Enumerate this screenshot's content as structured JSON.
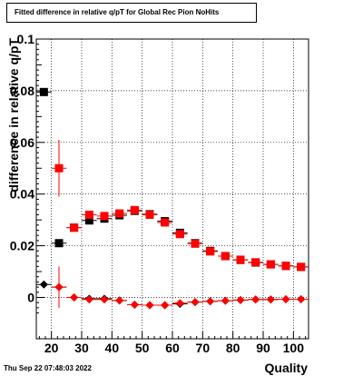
{
  "title": "Fitted difference in relative q/pT for Global Rec Pion NoHits",
  "timestamp": "Thu Sep 22 07:48:03 2022",
  "chart_data": {
    "type": "scatter",
    "title": "Fitted difference in relative q/pT for Global Rec Pion NoHits",
    "xlabel": "Quality",
    "ylabel": "difference in relative q/pT",
    "xlim": [
      15,
      105
    ],
    "ylim": [
      -0.016,
      0.1
    ],
    "xticks": [
      20,
      30,
      40,
      50,
      60,
      70,
      80,
      90,
      100
    ],
    "yticks": [
      0,
      0.02,
      0.04,
      0.06,
      0.08,
      0.1
    ],
    "ytick_labels": [
      "0",
      "0.02",
      "0.04",
      "0.06",
      "0.08",
      "0.1"
    ],
    "grid": true,
    "series": [
      {
        "marker": "square",
        "color": "#000000",
        "x": [
          17.5,
          22.5,
          27.5,
          32.5,
          37.5,
          42.5,
          47.5,
          52.5,
          57.5,
          62.5,
          67.5,
          72.5,
          77.5,
          82.5,
          87.5,
          92.5,
          97.5,
          102.5
        ],
        "y": [
          0.0795,
          0.021,
          0.027,
          0.0298,
          0.0305,
          0.0318,
          0.0335,
          0.0322,
          0.0295,
          0.025,
          0.021,
          0.018,
          0.016,
          0.0145,
          0.0135,
          0.0128,
          0.0122,
          0.0118
        ]
      },
      {
        "marker": "square",
        "color": "#ff0000",
        "x": [
          22.5,
          27.5,
          32.5,
          37.5,
          42.5,
          47.5,
          52.5,
          57.5,
          62.5,
          67.5,
          72.5,
          77.5,
          82.5,
          87.5,
          92.5,
          97.5,
          102.5
        ],
        "y": [
          0.05,
          0.027,
          0.032,
          0.0315,
          0.0325,
          0.0338,
          0.032,
          0.029,
          0.0245,
          0.0208,
          0.0178,
          0.016,
          0.0146,
          0.0136,
          0.0128,
          0.0122,
          0.0118
        ],
        "yerr": [
          0.011,
          0.001,
          0.001,
          0.001,
          0.001,
          0.001,
          0.001,
          0.001,
          0.001,
          0.0008,
          0.0008,
          0.0008,
          0.0008,
          0.0007,
          0.0007,
          0.0007,
          0.0007
        ]
      },
      {
        "marker": "diamond",
        "color": "#000000",
        "x": [
          17.5,
          22.5,
          27.5,
          32.5,
          37.5,
          42.5,
          47.5,
          52.5,
          57.5,
          62.5,
          67.5,
          72.5,
          77.5,
          82.5,
          87.5,
          92.5,
          97.5,
          102.5
        ],
        "y": [
          0.005,
          0.004,
          0.0,
          -0.0005,
          -0.0005,
          -0.0012,
          -0.0028,
          -0.003,
          -0.003,
          -0.0025,
          -0.0018,
          -0.0015,
          -0.0013,
          -0.001,
          -0.0008,
          -0.0008,
          -0.0007,
          -0.0007
        ]
      },
      {
        "marker": "diamond",
        "color": "#ff0000",
        "x": [
          22.5,
          27.5,
          32.5,
          37.5,
          42.5,
          47.5,
          52.5,
          57.5,
          62.5,
          67.5,
          72.5,
          77.5,
          82.5,
          87.5,
          92.5,
          97.5,
          102.5
        ],
        "y": [
          0.004,
          0.0,
          -0.0008,
          -0.0008,
          -0.0012,
          -0.0028,
          -0.003,
          -0.003,
          -0.0022,
          -0.0018,
          -0.0015,
          -0.0013,
          -0.001,
          -0.0008,
          -0.0008,
          -0.0007,
          -0.0007
        ],
        "yerr": [
          0.008,
          0.0005,
          0.0004,
          0.0004,
          0.0004,
          0.0004,
          0.0004,
          0.0004,
          0.0004,
          0.0003,
          0.0003,
          0.0003,
          0.0003,
          0.0003,
          0.0003,
          0.0003,
          0.0003
        ]
      }
    ]
  }
}
